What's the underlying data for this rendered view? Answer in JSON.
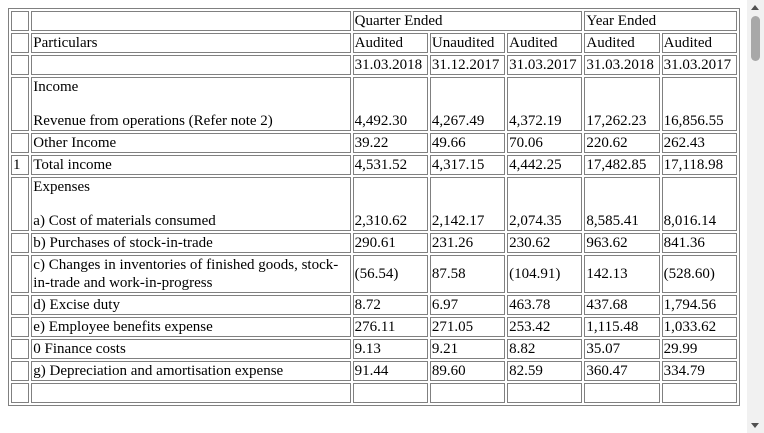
{
  "table": {
    "header": {
      "group_quarter": "Quarter Ended",
      "group_year": "Year Ended",
      "particulars": "Particulars",
      "status": [
        "Audited",
        "Unaudited",
        "Audited",
        "Audited",
        "Audited"
      ],
      "dates": [
        "31.03.2018",
        "31.12.2017",
        "31.03.2017",
        "31.03.2018",
        "31.03.2017"
      ]
    },
    "rows": [
      {
        "heading": "Income",
        "particulars": "Revenue from operations (Refer note 2)",
        "values": [
          "4,492.30",
          "4,267.49",
          "4,372.19",
          "17,262.23",
          "16,856.55"
        ]
      },
      {
        "particulars": "Other Income",
        "values": [
          "39.22",
          "49.66",
          "70.06",
          "220.62",
          "262.43"
        ]
      },
      {
        "no": "1",
        "particulars": "Total income",
        "values": [
          "4,531.52",
          "4,317.15",
          "4,442.25",
          "17,482.85",
          "17,118.98"
        ]
      },
      {
        "heading": "Expenses",
        "particulars": "a) Cost of materials consumed",
        "values": [
          "2,310.62",
          "2,142.17",
          "2,074.35",
          "8,585.41",
          "8,016.14"
        ]
      },
      {
        "particulars": "b) Purchases of stock-in-trade",
        "values": [
          "290.61",
          "231.26",
          "230.62",
          "963.62",
          "841.36"
        ]
      },
      {
        "particulars": "c) Changes in inventories of finished goods, stock-in-trade and work-in-progress",
        "values": [
          "(56.54)",
          "87.58",
          "(104.91)",
          "142.13",
          "(528.60)"
        ]
      },
      {
        "particulars": "d) Excise duty",
        "values": [
          "8.72",
          "6.97",
          "463.78",
          "437.68",
          "1,794.56"
        ]
      },
      {
        "particulars": "e) Employee benefits expense",
        "values": [
          "276.11",
          "271.05",
          "253.42",
          "1,115.48",
          "1,033.62"
        ]
      },
      {
        "particulars": "0 Finance costs",
        "values": [
          "9.13",
          "9.21",
          "8.82",
          "35.07",
          "29.99"
        ]
      },
      {
        "particulars": "g) Depreciation and amortisation expense",
        "values": [
          "91.44",
          "89.60",
          "82.59",
          "360.47",
          "334.79"
        ]
      }
    ]
  }
}
